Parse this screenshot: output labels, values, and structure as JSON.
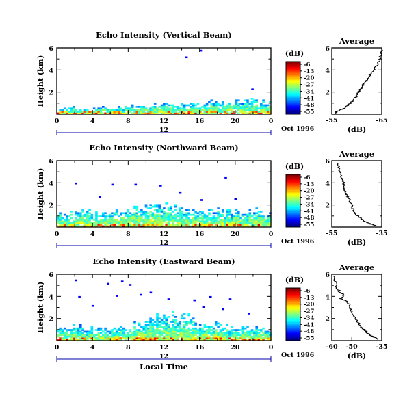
{
  "chart_data": [
    {
      "type": "heatmap",
      "title": "Echo Intensity (Vertical Beam)",
      "ylabel": "Height (km)",
      "xlabel": "",
      "xlim": [
        0,
        24
      ],
      "ylim": [
        0,
        6
      ],
      "x_ticks": [
        "0",
        "4",
        "8",
        "12",
        "16",
        "20",
        "0"
      ],
      "y_ticks": [
        "2",
        "4",
        "6"
      ],
      "date_label": "12",
      "date_suffix": "Oct 1996",
      "colorbar": {
        "label": "(dB)",
        "ticks": [
          "-6",
          "-13",
          "-20",
          "-27",
          "-34",
          "-41",
          "-48",
          "-55"
        ]
      },
      "echo_profile": [
        [
          0,
          0.45
        ],
        [
          1,
          0.5
        ],
        [
          2,
          0.6
        ],
        [
          3,
          0.35
        ],
        [
          4,
          0.5
        ],
        [
          5,
          0.6
        ],
        [
          6,
          0.45
        ],
        [
          7,
          0.55
        ],
        [
          8,
          0.6
        ],
        [
          9,
          0.7
        ],
        [
          10,
          0.75
        ],
        [
          11,
          0.8
        ],
        [
          12,
          0.85
        ],
        [
          13,
          0.8
        ],
        [
          14,
          0.9
        ],
        [
          15,
          0.9
        ],
        [
          16,
          0.85
        ],
        [
          17,
          0.95
        ],
        [
          18,
          1.0
        ],
        [
          19,
          1.0
        ],
        [
          20,
          1.1
        ],
        [
          21,
          1.05
        ],
        [
          22,
          1.2
        ],
        [
          23,
          1.0
        ],
        [
          24,
          1.0
        ]
      ],
      "echo_specks": [
        [
          14.4,
          5.1
        ],
        [
          16.0,
          5.7
        ],
        [
          21.8,
          2.2
        ]
      ],
      "profile": {
        "title": "Average",
        "xlabel": "(dB)",
        "xlim": [
          -55,
          -65
        ],
        "ylim": [
          0,
          6
        ],
        "x_ticks": [
          "-55",
          "-65"
        ],
        "y_ticks": [
          "2",
          "4",
          "6"
        ],
        "values": [
          [
            -55.6,
            0.1
          ],
          [
            -56.2,
            0.3
          ],
          [
            -57.3,
            0.5
          ],
          [
            -58.2,
            0.8
          ],
          [
            -59.0,
            1.1
          ],
          [
            -59.7,
            1.5
          ],
          [
            -60.3,
            1.9
          ],
          [
            -60.8,
            2.3
          ],
          [
            -61.4,
            2.7
          ],
          [
            -62.0,
            3.1
          ],
          [
            -62.5,
            3.5
          ],
          [
            -63.3,
            3.9
          ],
          [
            -63.9,
            4.3
          ],
          [
            -64.4,
            4.8
          ],
          [
            -64.8,
            5.3
          ],
          [
            -65.2,
            5.8
          ]
        ]
      }
    },
    {
      "type": "heatmap",
      "title": "Echo Intensity (Northward Beam)",
      "ylabel": "Height (km)",
      "xlabel": "",
      "xlim": [
        0,
        24
      ],
      "ylim": [
        0,
        6
      ],
      "x_ticks": [
        "0",
        "4",
        "8",
        "12",
        "16",
        "20",
        "0"
      ],
      "y_ticks": [
        "2",
        "4",
        "6"
      ],
      "date_label": "12",
      "date_suffix": "Oct 1996",
      "colorbar": {
        "label": "(dB)",
        "ticks": [
          "-6",
          "-13",
          "-20",
          "-27",
          "-34",
          "-41",
          "-48",
          "-55"
        ]
      },
      "echo_profile": [
        [
          0,
          1.0
        ],
        [
          1,
          1.1
        ],
        [
          2,
          1.3
        ],
        [
          3,
          1.3
        ],
        [
          4,
          1.2
        ],
        [
          5,
          1.1
        ],
        [
          6,
          1.3
        ],
        [
          7,
          1.2
        ],
        [
          8,
          1.5
        ],
        [
          9,
          1.6
        ],
        [
          10,
          1.8
        ],
        [
          11,
          1.8
        ],
        [
          12,
          2.2
        ],
        [
          13,
          1.9
        ],
        [
          14,
          1.6
        ],
        [
          15,
          1.4
        ],
        [
          16,
          1.2
        ],
        [
          17,
          1.3
        ],
        [
          18,
          1.5
        ],
        [
          19,
          1.4
        ],
        [
          20,
          1.3
        ],
        [
          21,
          1.2
        ],
        [
          22,
          1.6
        ],
        [
          23,
          1.1
        ],
        [
          24,
          1.0
        ]
      ],
      "echo_specks": [
        [
          2.0,
          3.9
        ],
        [
          6.1,
          3.8
        ],
        [
          8.7,
          3.8
        ],
        [
          11.5,
          3.7
        ],
        [
          16.1,
          2.4
        ],
        [
          19.9,
          2.5
        ],
        [
          13.7,
          3.1
        ],
        [
          4.7,
          2.7
        ],
        [
          18.8,
          4.4
        ]
      ],
      "profile": {
        "title": "Average",
        "xlabel": "(dB)",
        "xlim": [
          -55,
          -35
        ],
        "ylim": [
          0,
          6
        ],
        "x_ticks": [
          "-55",
          "-35"
        ],
        "y_ticks": [
          "2",
          "4",
          "6"
        ],
        "values": [
          [
            -37.4,
            0.1
          ],
          [
            -39.6,
            0.3
          ],
          [
            -41.8,
            0.5
          ],
          [
            -43.6,
            0.8
          ],
          [
            -45.1,
            1.1
          ],
          [
            -46.2,
            1.5
          ],
          [
            -46.9,
            1.9
          ],
          [
            -47.7,
            2.3
          ],
          [
            -48.3,
            2.7
          ],
          [
            -49.0,
            2.9
          ],
          [
            -49.5,
            3.1
          ],
          [
            -49.7,
            3.5
          ],
          [
            -50.2,
            3.9
          ],
          [
            -50.9,
            4.3
          ],
          [
            -51.5,
            4.8
          ],
          [
            -52.1,
            5.3
          ],
          [
            -52.6,
            5.8
          ]
        ]
      }
    },
    {
      "type": "heatmap",
      "title": "Echo Intensity (Eastward Beam)",
      "ylabel": "Height (km)",
      "xlabel": "Local Time",
      "xlim": [
        0,
        24
      ],
      "ylim": [
        0,
        6
      ],
      "x_ticks": [
        "0",
        "4",
        "8",
        "12",
        "16",
        "20",
        "0"
      ],
      "y_ticks": [
        "2",
        "4",
        "6"
      ],
      "date_label": "12",
      "date_suffix": "Oct 1996",
      "colorbar": {
        "label": "(dB)",
        "ticks": [
          "-6",
          "-13",
          "-20",
          "-27",
          "-34",
          "-41",
          "-48",
          "-55"
        ]
      },
      "echo_profile": [
        [
          0,
          1.1
        ],
        [
          1,
          1.0
        ],
        [
          2,
          1.2
        ],
        [
          3,
          1.0
        ],
        [
          4,
          1.0
        ],
        [
          5,
          0.9
        ],
        [
          6,
          1.0
        ],
        [
          7,
          1.2
        ],
        [
          8,
          1.3
        ],
        [
          9,
          1.4
        ],
        [
          10,
          1.6
        ],
        [
          11,
          2.0
        ],
        [
          12,
          2.3
        ],
        [
          13,
          2.3
        ],
        [
          14,
          2.2
        ],
        [
          15,
          1.9
        ],
        [
          16,
          1.7
        ],
        [
          17,
          1.4
        ],
        [
          18,
          1.6
        ],
        [
          19,
          1.3
        ],
        [
          20,
          1.2
        ],
        [
          21,
          1.3
        ],
        [
          22,
          1.2
        ],
        [
          23,
          1.0
        ],
        [
          24,
          1.0
        ]
      ],
      "echo_specks": [
        [
          2.0,
          5.4
        ],
        [
          5.6,
          5.1
        ],
        [
          7.2,
          5.3
        ],
        [
          8.1,
          5.0
        ],
        [
          10.4,
          4.3
        ],
        [
          2.4,
          3.9
        ],
        [
          6.6,
          4.0
        ],
        [
          9.3,
          4.1
        ],
        [
          12.4,
          3.7
        ],
        [
          15.3,
          3.6
        ],
        [
          17.1,
          3.9
        ],
        [
          19.3,
          3.7
        ],
        [
          16.3,
          3.0
        ],
        [
          21.4,
          2.4
        ],
        [
          3.9,
          3.1
        ],
        [
          18.5,
          2.8
        ]
      ],
      "profile": {
        "title": "Average",
        "xlabel": "(dB)",
        "xlim": [
          -60,
          -35
        ],
        "ylim": [
          0,
          6
        ],
        "x_ticks": [
          "-60",
          "-50",
          "-35"
        ],
        "y_ticks": [
          "2",
          "4",
          "6"
        ],
        "values": [
          [
            -37.2,
            0.1
          ],
          [
            -38.6,
            0.3
          ],
          [
            -40.6,
            0.5
          ],
          [
            -42.8,
            0.8
          ],
          [
            -44.8,
            1.1
          ],
          [
            -46.3,
            1.5
          ],
          [
            -47.7,
            1.9
          ],
          [
            -48.9,
            2.3
          ],
          [
            -50.5,
            2.7
          ],
          [
            -50.9,
            3.1
          ],
          [
            -52.2,
            3.5
          ],
          [
            -55.6,
            3.8
          ],
          [
            -53.8,
            4.1
          ],
          [
            -56.0,
            4.4
          ],
          [
            -57.6,
            4.8
          ],
          [
            -58.3,
            5.3
          ],
          [
            -59.0,
            5.8
          ]
        ]
      }
    }
  ]
}
